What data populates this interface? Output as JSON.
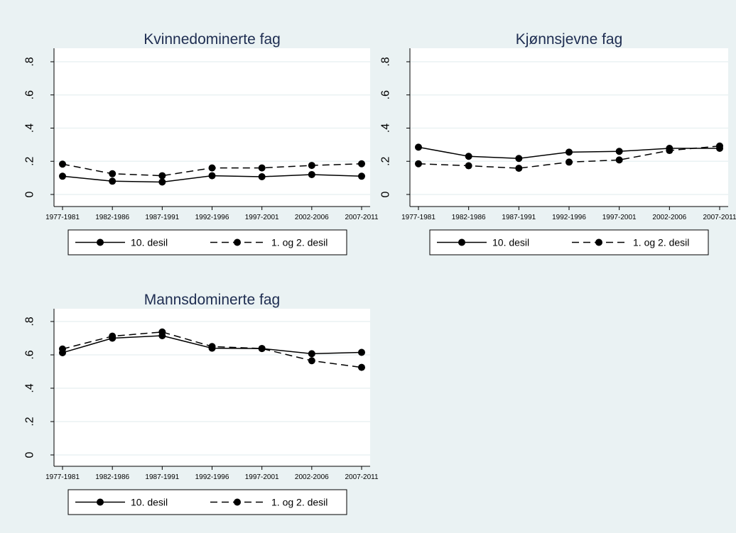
{
  "colors": {
    "background": "#eaf2f3",
    "plot_bg": "#ffffff",
    "grid": "#eaf2f3",
    "line": "#000000",
    "title": "#1e2d51"
  },
  "chart_data": [
    {
      "type": "line",
      "title": "Kvinnedominerte fag",
      "categories": [
        "1977-1981",
        "1982-1986",
        "1987-1991",
        "1992-1996",
        "1997-2001",
        "2002-2006",
        "2007-2011"
      ],
      "ylim": [
        0,
        0.8
      ],
      "yticks": [
        "0",
        ".2",
        ".4",
        ".6",
        ".8"
      ],
      "series": [
        {
          "name": "10. desil",
          "style": "solid",
          "values": [
            0.11,
            0.08,
            0.075,
            0.113,
            0.107,
            0.12,
            0.11
          ]
        },
        {
          "name": "1. og 2. desil",
          "style": "dashed",
          "values": [
            0.183,
            0.125,
            0.113,
            0.16,
            0.16,
            0.175,
            0.185
          ]
        }
      ]
    },
    {
      "type": "line",
      "title": "Kjønnsjevne fag",
      "categories": [
        "1977-1981",
        "1982-1986",
        "1987-1991",
        "1992-1996",
        "1997-2001",
        "2002-2006",
        "2007-2011"
      ],
      "ylim": [
        0,
        0.8
      ],
      "yticks": [
        "0",
        ".2",
        ".4",
        ".6",
        ".8"
      ],
      "series": [
        {
          "name": "10. desil",
          "style": "solid",
          "values": [
            0.285,
            0.23,
            0.217,
            0.255,
            0.26,
            0.278,
            0.278
          ]
        },
        {
          "name": "1. og 2. desil",
          "style": "dashed",
          "values": [
            0.185,
            0.173,
            0.158,
            0.195,
            0.208,
            0.265,
            0.292
          ]
        }
      ]
    },
    {
      "type": "line",
      "title": "Mannsdominerte fag",
      "categories": [
        "1977-1981",
        "1982-1986",
        "1987-1991",
        "1992-1996",
        "1997-2001",
        "2002-2006",
        "2007-2011"
      ],
      "ylim": [
        0,
        0.8
      ],
      "yticks": [
        "0",
        ".2",
        ".4",
        ".6",
        ".8"
      ],
      "series": [
        {
          "name": "10. desil",
          "style": "solid",
          "values": [
            0.613,
            0.7,
            0.715,
            0.64,
            0.638,
            0.607,
            0.615
          ]
        },
        {
          "name": "1. og 2. desil",
          "style": "dashed",
          "values": [
            0.635,
            0.712,
            0.737,
            0.65,
            0.638,
            0.565,
            0.525
          ]
        }
      ]
    }
  ]
}
